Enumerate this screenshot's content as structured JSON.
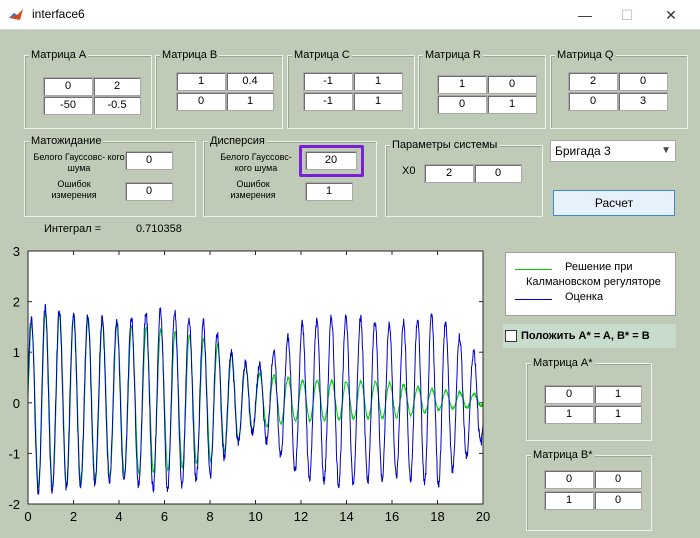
{
  "window": {
    "title": "interface6",
    "minimize": "—",
    "maximize": "☐",
    "close": "✕"
  },
  "matrices": {
    "A": {
      "title": "Матрица A",
      "cells": [
        "0",
        "2",
        "-50",
        "-0.5"
      ]
    },
    "B": {
      "title": "Матрица B",
      "cells": [
        "1",
        "0.4",
        "0",
        "1"
      ]
    },
    "C": {
      "title": "Матрица C",
      "cells": [
        "-1",
        "1",
        "-1",
        "1"
      ]
    },
    "R": {
      "title": "Матрица R",
      "cells": [
        "1",
        "0",
        "0",
        "1"
      ]
    },
    "Q": {
      "title": "Матрица Q",
      "cells": [
        "2",
        "0",
        "0",
        "3"
      ]
    }
  },
  "expectation": {
    "title": "Матожидание",
    "white_noise_label": "Белого Гауссовс- кого шума",
    "white_noise_value": "0",
    "error_label": "Ошибок измерения",
    "error_value": "0"
  },
  "dispersion": {
    "title": "Дисперсия",
    "white_noise_label": "Белого Гауссовс- кого шума",
    "white_noise_value": "20",
    "error_label": "Ошибок измерения",
    "error_value": "1"
  },
  "system_params": {
    "title": "Параметры системы",
    "x0_label": "X0",
    "x0_values": [
      "2",
      "0"
    ]
  },
  "brigade": {
    "selected": "Бригада 3"
  },
  "calculate_button": "Расчет",
  "integral": {
    "label": "Интеграл =",
    "value": "0.710358"
  },
  "chart_data": {
    "type": "line",
    "xlim": [
      0,
      20
    ],
    "ylim": [
      -2,
      3
    ],
    "xticks": [
      0,
      2,
      4,
      6,
      8,
      10,
      12,
      14,
      16,
      18,
      20
    ],
    "yticks": [
      -2,
      -1,
      0,
      1,
      2,
      3
    ],
    "series": [
      {
        "name": "Решение при Калмановском регуляторе",
        "color": "#00cc00",
        "envelope_t": [
          0,
          0.5,
          2,
          4,
          6,
          8,
          9,
          10,
          12,
          14,
          16,
          18,
          20
        ],
        "envelope_a": [
          1.4,
          1.75,
          1.7,
          1.5,
          1.4,
          1.2,
          0.9,
          0.55,
          0.4,
          0.38,
          0.35,
          0.2,
          0.12
        ]
      },
      {
        "name": "Оценка",
        "color": "#0000cc",
        "envelope_t": [
          0,
          0.5,
          2,
          4,
          6,
          8,
          9,
          10,
          12,
          14,
          16,
          18,
          20
        ],
        "envelope_a": [
          1.5,
          1.85,
          1.7,
          1.6,
          1.8,
          1.5,
          0.9,
          0.6,
          1.5,
          1.7,
          1.5,
          1.7,
          0.8
        ]
      }
    ],
    "omega": 10.0
  },
  "legend": {
    "s1_line1": "Решение при",
    "s1_line2": "Калмановском регуляторе",
    "s2": "Оценка"
  },
  "checkbox": {
    "label": "Положить A* = A, B* = B",
    "checked": false
  },
  "matrix_a_star": {
    "title": "Матрица A*",
    "cells": [
      "0",
      "1",
      "1",
      "1"
    ]
  },
  "matrix_b_star": {
    "title": "Матрица B*",
    "cells": [
      "0",
      "0",
      "1",
      "0"
    ]
  }
}
